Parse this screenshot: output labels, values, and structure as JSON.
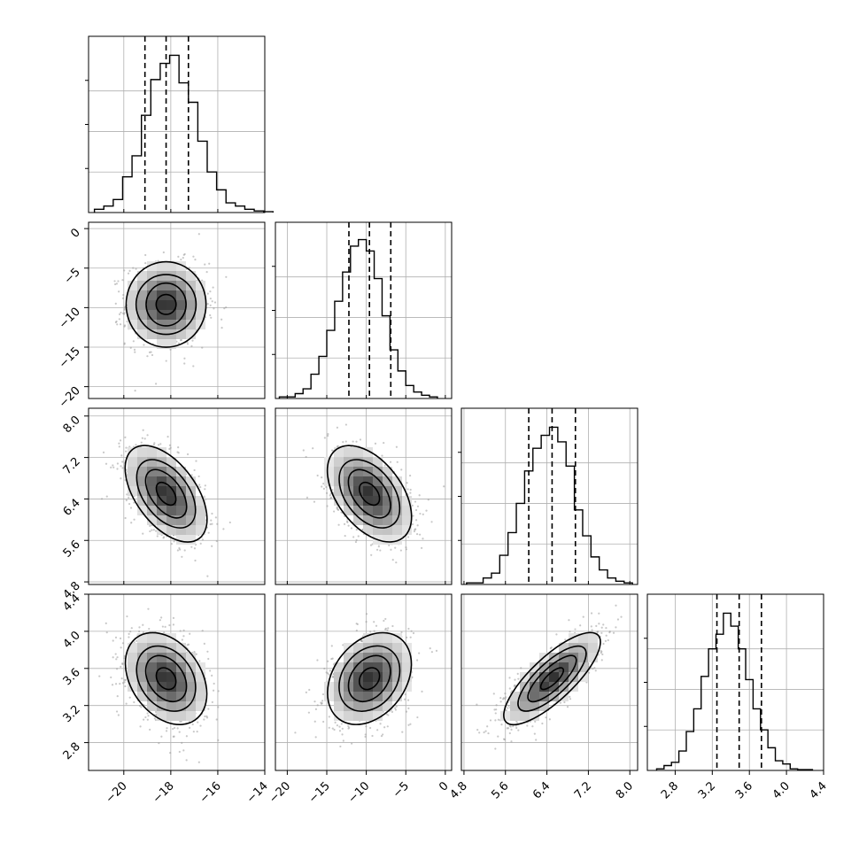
{
  "chart_data": {
    "type": "corner",
    "parameters": [
      {
        "range": [
          -21.5,
          -14.0
        ],
        "median": -18.2,
        "q16": -19.1,
        "q84": -17.25,
        "ticks": [
          -20,
          -18,
          -16,
          -14
        ],
        "tick_labels": [
          "−20",
          "−18",
          "−16",
          "−14"
        ]
      },
      {
        "range": [
          -21.5,
          0.8
        ],
        "median": -9.6,
        "q16": -12.2,
        "q84": -6.9,
        "ticks": [
          -20,
          -15,
          -10,
          -5,
          0
        ],
        "tick_labels": [
          "−20",
          "−15",
          "−10",
          "−5",
          "0"
        ]
      },
      {
        "range": [
          4.75,
          8.15
        ],
        "median": 6.5,
        "q16": 6.05,
        "q84": 6.95,
        "ticks": [
          4.8,
          5.6,
          6.4,
          7.2,
          8.0
        ],
        "tick_labels": [
          "4.8",
          "5.6",
          "6.4",
          "7.2",
          "8.0"
        ]
      },
      {
        "range": [
          2.5,
          4.4
        ],
        "median": 3.49,
        "q16": 3.25,
        "q84": 3.73,
        "ticks": [
          2.8,
          3.2,
          3.6,
          4.0,
          4.4
        ],
        "tick_labels": [
          "2.8",
          "3.2",
          "3.6",
          "4.0",
          "4.4"
        ]
      }
    ],
    "histograms": [
      {
        "bin_start": -21.25,
        "bin_width": 0.4,
        "counts": [
          0.02,
          0.04,
          0.08,
          0.22,
          0.35,
          0.6,
          0.82,
          0.92,
          0.97,
          0.8,
          0.68,
          0.44,
          0.25,
          0.14,
          0.06,
          0.04,
          0.02,
          0.01,
          0.005
        ]
      },
      {
        "bin_start": -21.0,
        "bin_width": 1.0,
        "counts": [
          0.01,
          0.01,
          0.03,
          0.06,
          0.15,
          0.26,
          0.42,
          0.6,
          0.78,
          0.94,
          0.98,
          0.91,
          0.74,
          0.51,
          0.3,
          0.17,
          0.08,
          0.04,
          0.02,
          0.01
        ]
      },
      {
        "bin_start": 4.85,
        "bin_width": 0.16,
        "counts": [
          0.01,
          0.01,
          0.04,
          0.07,
          0.18,
          0.32,
          0.5,
          0.7,
          0.84,
          0.92,
          0.97,
          0.88,
          0.73,
          0.46,
          0.3,
          0.17,
          0.09,
          0.04,
          0.02,
          0.01
        ]
      },
      {
        "bin_start": 2.6,
        "bin_width": 0.08,
        "counts": [
          0.01,
          0.03,
          0.05,
          0.12,
          0.24,
          0.38,
          0.58,
          0.75,
          0.84,
          0.97,
          0.89,
          0.75,
          0.56,
          0.38,
          0.25,
          0.14,
          0.06,
          0.04,
          0.01,
          0.005,
          0.005
        ]
      }
    ],
    "density_panels": [
      {
        "row": 1,
        "col": 0,
        "center": [
          -18.2,
          -9.6
        ],
        "sigma": [
          0.85,
          2.6
        ],
        "rho": 0.0
      },
      {
        "row": 2,
        "col": 0,
        "center": [
          -18.2,
          6.5
        ],
        "sigma": [
          0.85,
          0.45
        ],
        "rho": -0.5
      },
      {
        "row": 2,
        "col": 1,
        "center": [
          -9.6,
          6.5
        ],
        "sigma": [
          2.6,
          0.45
        ],
        "rho": -0.45
      },
      {
        "row": 3,
        "col": 0,
        "center": [
          -18.2,
          3.49
        ],
        "sigma": [
          0.85,
          0.24
        ],
        "rho": -0.3
      },
      {
        "row": 3,
        "col": 1,
        "center": [
          -9.6,
          3.49
        ],
        "sigma": [
          2.6,
          0.24
        ],
        "rho": 0.28
      },
      {
        "row": 3,
        "col": 2,
        "center": [
          6.5,
          3.49
        ],
        "sigma": [
          0.45,
          0.24
        ],
        "rho": 0.78
      }
    ],
    "contour_levels_sigma": [
      0.5,
      1.0,
      1.5,
      2.0
    ],
    "grid": true,
    "xlabel": "",
    "ylabel": "",
    "title": ""
  }
}
